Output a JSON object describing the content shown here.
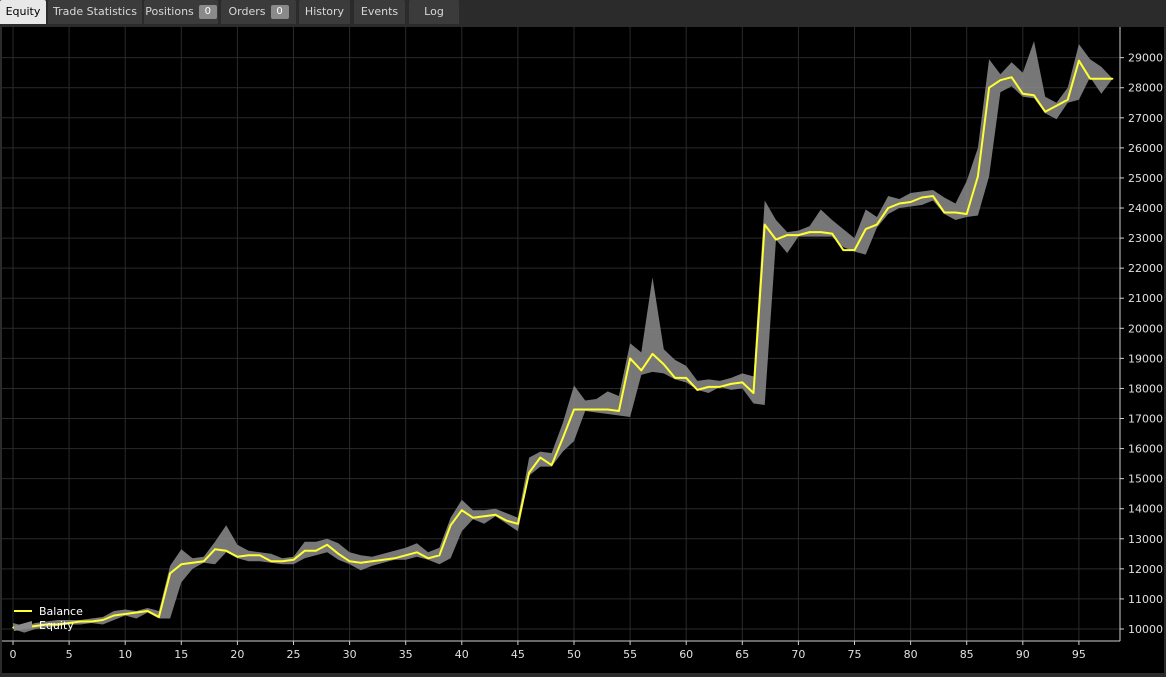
{
  "tabs": [
    {
      "label": "Equity",
      "active": true,
      "badge": null
    },
    {
      "label": "Trade Statistics",
      "active": false,
      "badge": null
    },
    {
      "label": "Positions",
      "active": false,
      "badge": "0"
    },
    {
      "label": "Orders",
      "active": false,
      "badge": "0"
    },
    {
      "label": "History",
      "active": false,
      "badge": null
    },
    {
      "label": "Events",
      "active": false,
      "badge": null
    },
    {
      "label": "Log",
      "active": false,
      "badge": null
    }
  ],
  "colors": {
    "balance": "#ffff33",
    "equity_band": "#8c8c8c",
    "grid": "#2a2a2a",
    "axis_text": "#e0e0e0",
    "background": "#000000"
  },
  "chart_data": {
    "type": "line",
    "legend": {
      "position": "bottom-left",
      "entries": [
        {
          "name": "Balance",
          "style": "line",
          "color": "#ffff33"
        },
        {
          "name": "Equity",
          "style": "band",
          "color": "#8c8c8c"
        }
      ]
    },
    "grid": true,
    "xlim": [
      0,
      99
    ],
    "ylim": [
      9650,
      29800
    ],
    "xticks": [
      0,
      5,
      10,
      15,
      20,
      25,
      30,
      35,
      40,
      45,
      50,
      55,
      60,
      65,
      70,
      75,
      80,
      85,
      90,
      95
    ],
    "yticks": [
      10000,
      11000,
      12000,
      13000,
      14000,
      15000,
      16000,
      17000,
      18000,
      19000,
      20000,
      21000,
      22000,
      23000,
      24000,
      25000,
      26000,
      27000,
      28000,
      29000
    ],
    "series": [
      {
        "name": "Balance",
        "x": [
          0,
          1,
          2,
          3,
          4,
          5,
          6,
          7,
          8,
          9,
          10,
          11,
          12,
          13,
          14,
          15,
          16,
          17,
          18,
          19,
          20,
          21,
          22,
          23,
          24,
          25,
          26,
          27,
          28,
          29,
          30,
          31,
          32,
          33,
          34,
          35,
          36,
          37,
          38,
          39,
          40,
          41,
          42,
          43,
          44,
          45,
          46,
          47,
          48,
          49,
          50,
          51,
          52,
          53,
          54,
          55,
          56,
          57,
          58,
          59,
          60,
          61,
          62,
          63,
          64,
          65,
          66,
          67,
          68,
          69,
          70,
          71,
          72,
          73,
          74,
          75,
          76,
          77,
          78,
          79,
          80,
          81,
          82,
          83,
          84,
          85,
          86,
          87,
          88,
          89,
          90,
          91,
          92,
          93,
          94,
          95,
          96,
          97,
          98
        ],
        "values": [
          10050,
          10050,
          10100,
          10150,
          10150,
          10200,
          10250,
          10250,
          10300,
          10450,
          10500,
          10550,
          10600,
          10400,
          11850,
          12150,
          12200,
          12250,
          12650,
          12600,
          12400,
          12450,
          12450,
          12250,
          12250,
          12300,
          12600,
          12600,
          12800,
          12500,
          12250,
          12200,
          12250,
          12300,
          12350,
          12450,
          12550,
          12350,
          12450,
          13450,
          13950,
          13700,
          13750,
          13800,
          13600,
          13500,
          15200,
          15700,
          15450,
          16350,
          17300,
          17300,
          17300,
          17300,
          17250,
          19000,
          18600,
          19150,
          18800,
          18350,
          18350,
          17950,
          18050,
          18050,
          18150,
          18200,
          17850,
          23450,
          22950,
          23100,
          23100,
          23200,
          23200,
          23150,
          22600,
          22600,
          23300,
          23450,
          24000,
          24150,
          24200,
          24350,
          24400,
          23850,
          23850,
          23800,
          25050,
          28000,
          28250,
          28350,
          27800,
          27750,
          27200,
          27400,
          27600,
          28900,
          28300,
          28300,
          28300
        ]
      },
      {
        "name": "Equity",
        "x": [
          0,
          1,
          2,
          3,
          4,
          5,
          6,
          7,
          8,
          9,
          10,
          11,
          12,
          13,
          14,
          15,
          16,
          17,
          18,
          19,
          20,
          21,
          22,
          23,
          24,
          25,
          26,
          27,
          28,
          29,
          30,
          31,
          32,
          33,
          34,
          35,
          36,
          37,
          38,
          39,
          40,
          41,
          42,
          43,
          44,
          45,
          46,
          47,
          48,
          49,
          50,
          51,
          52,
          53,
          54,
          55,
          56,
          57,
          58,
          59,
          60,
          61,
          62,
          63,
          64,
          65,
          66,
          67,
          68,
          69,
          70,
          71,
          72,
          73,
          74,
          75,
          76,
          77,
          78,
          79,
          80,
          81,
          82,
          83,
          84,
          85,
          86,
          87,
          88,
          89,
          90,
          91,
          92,
          93,
          94,
          95,
          96,
          97,
          98
        ],
        "high": [
          10200,
          10100,
          10200,
          10250,
          10300,
          10300,
          10300,
          10350,
          10400,
          10600,
          10650,
          10600,
          10700,
          10600,
          12100,
          12650,
          12350,
          12400,
          12900,
          13450,
          12800,
          12600,
          12550,
          12500,
          12350,
          12400,
          12900,
          12900,
          13000,
          12850,
          12550,
          12450,
          12400,
          12500,
          12600,
          12700,
          12850,
          12550,
          12700,
          13700,
          14300,
          13950,
          13950,
          14000,
          13850,
          13700,
          15700,
          15900,
          15850,
          16850,
          18100,
          17600,
          17650,
          17900,
          17750,
          19500,
          19200,
          21700,
          19300,
          18950,
          18750,
          18250,
          18300,
          18250,
          18350,
          18500,
          18400,
          24250,
          23600,
          23200,
          23250,
          23400,
          23950,
          23600,
          23300,
          23000,
          23950,
          23700,
          24400,
          24300,
          24500,
          24550,
          24600,
          24350,
          24150,
          24900,
          26000,
          28950,
          28450,
          28850,
          28500,
          29550,
          27700,
          27500,
          28000,
          29450,
          28950,
          28700,
          28300
        ],
        "low": [
          10000,
          9880,
          10000,
          10050,
          10100,
          10150,
          10150,
          10200,
          10150,
          10300,
          10450,
          10350,
          10550,
          10350,
          10350,
          11550,
          12000,
          12200,
          12150,
          12550,
          12350,
          12250,
          12250,
          12200,
          12150,
          12150,
          12350,
          12450,
          12550,
          12300,
          12150,
          11950,
          12100,
          12200,
          12300,
          12300,
          12400,
          12300,
          12150,
          12350,
          13250,
          13650,
          13500,
          13750,
          13500,
          13250,
          15100,
          15400,
          15400,
          15900,
          16250,
          17250,
          17200,
          17150,
          17100,
          17050,
          18450,
          18550,
          18500,
          18300,
          18200,
          17950,
          17850,
          18050,
          17950,
          18000,
          17500,
          17450,
          22950,
          22500,
          23050,
          23050,
          23050,
          23050,
          22700,
          22550,
          22450,
          23350,
          23800,
          24000,
          24050,
          24100,
          24250,
          23800,
          23600,
          23700,
          23750,
          25050,
          27850,
          28050,
          27700,
          27650,
          27150,
          26950,
          27500,
          27600,
          28350,
          27800,
          28300
        ]
      }
    ]
  }
}
